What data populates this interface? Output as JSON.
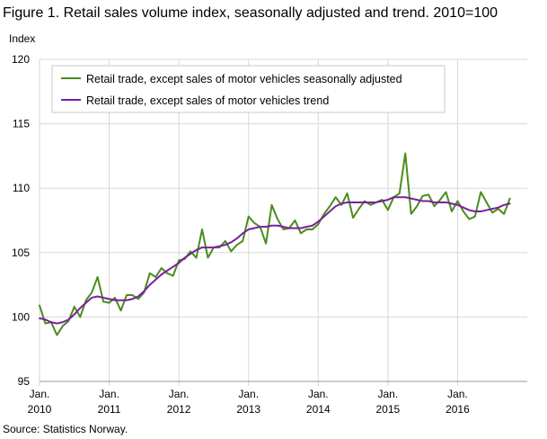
{
  "title": "Figure 1. Retail sales volume index, seasonally adjusted and trend. 2010=100",
  "source": "Source: Statistics Norway.",
  "colors": {
    "seasonally_adjusted": "#4a8c1c",
    "trend": "#7a1fa0",
    "grid": "#d7d7d7",
    "axis": "#9a9a9a"
  },
  "chart_data": {
    "type": "line",
    "ylabel": "Index",
    "ylim": [
      95,
      120
    ],
    "yticks": [
      95,
      100,
      105,
      110,
      115,
      120
    ],
    "x_range": [
      "2010-01",
      "2016-12"
    ],
    "xticks": [
      {
        "month": "2010-01",
        "line1": "Jan.",
        "line2": "2010"
      },
      {
        "month": "2011-01",
        "line1": "Jan.",
        "line2": "2011"
      },
      {
        "month": "2012-01",
        "line1": "Jan.",
        "line2": "2012"
      },
      {
        "month": "2013-01",
        "line1": "Jan.",
        "line2": "2013"
      },
      {
        "month": "2014-01",
        "line1": "Jan.",
        "line2": "2014"
      },
      {
        "month": "2015-01",
        "line1": "Jan.",
        "line2": "2015"
      },
      {
        "month": "2016-01",
        "line1": "Jan.",
        "line2": "2016"
      }
    ],
    "grid": "horizontal",
    "legend_position": "top-left",
    "series": [
      {
        "name": "Retail trade, except sales of motor vehicles seasonally adjusted",
        "values": [
          100.9,
          99.5,
          99.6,
          98.6,
          99.3,
          99.7,
          100.8,
          100.0,
          101.3,
          101.9,
          103.1,
          101.2,
          101.1,
          101.5,
          100.5,
          101.7,
          101.7,
          101.4,
          101.9,
          103.4,
          103.1,
          103.8,
          103.4,
          103.2,
          104.4,
          104.5,
          105.1,
          104.6,
          106.8,
          104.6,
          105.4,
          105.4,
          105.9,
          105.1,
          105.6,
          105.9,
          107.8,
          107.3,
          107.0,
          105.7,
          108.7,
          107.6,
          106.8,
          106.9,
          107.5,
          106.5,
          106.8,
          106.8,
          107.2,
          108.0,
          108.6,
          109.3,
          108.7,
          109.6,
          107.7,
          108.4,
          109.0,
          108.7,
          108.9,
          109.1,
          108.3,
          109.3,
          109.6,
          112.7,
          108.0,
          108.6,
          109.4,
          109.5,
          108.6,
          109.1,
          109.7,
          108.2,
          109.0,
          108.2,
          107.6,
          107.8,
          109.7,
          108.9,
          108.1,
          108.4,
          108.0,
          109.2
        ]
      },
      {
        "name": "Retail trade, except sales of motor vehicles trend",
        "values": [
          99.9,
          99.8,
          99.6,
          99.5,
          99.6,
          99.8,
          100.2,
          100.7,
          101.1,
          101.5,
          101.6,
          101.5,
          101.4,
          101.3,
          101.3,
          101.3,
          101.4,
          101.6,
          102.0,
          102.5,
          102.9,
          103.3,
          103.6,
          103.9,
          104.2,
          104.6,
          104.9,
          105.2,
          105.4,
          105.4,
          105.4,
          105.5,
          105.6,
          105.8,
          106.1,
          106.5,
          106.8,
          106.9,
          107.0,
          107.0,
          107.1,
          107.1,
          107.0,
          106.9,
          106.9,
          106.9,
          107.0,
          107.1,
          107.4,
          107.8,
          108.2,
          108.6,
          108.8,
          108.9,
          108.9,
          108.9,
          108.9,
          108.9,
          108.9,
          109.0,
          109.1,
          109.3,
          109.3,
          109.3,
          109.2,
          109.1,
          109.0,
          109.0,
          108.9,
          108.9,
          108.9,
          108.8,
          108.7,
          108.5,
          108.3,
          108.2,
          108.2,
          108.3,
          108.4,
          108.5,
          108.7,
          108.8
        ]
      }
    ]
  }
}
